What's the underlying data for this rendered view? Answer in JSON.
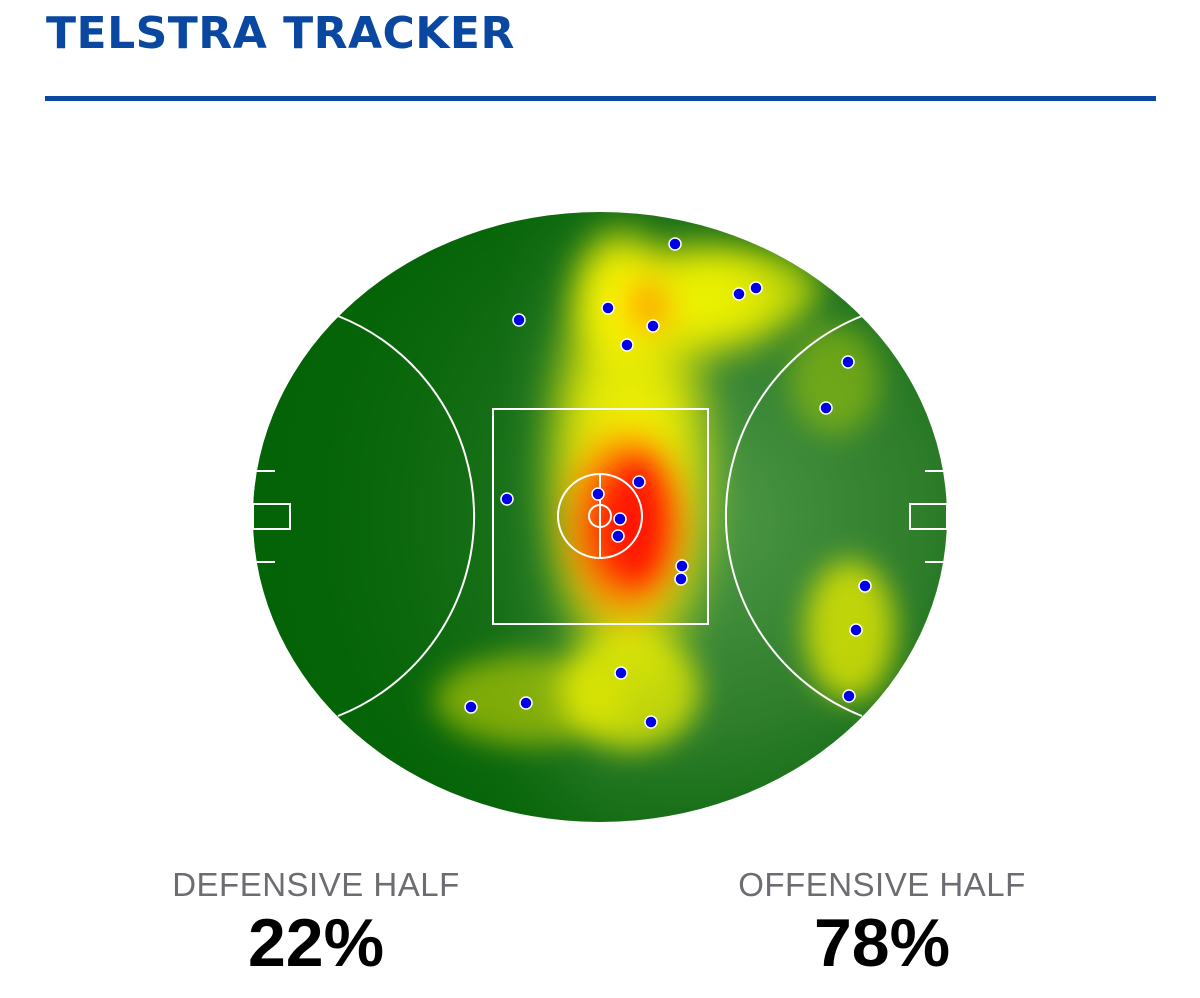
{
  "header": {
    "title": "TELSTRA TRACKER"
  },
  "colors": {
    "brand": "#0a47a0",
    "field_dark": "#046306",
    "field_light": "#4f9a48",
    "marker": "#0000e6",
    "label_gray": "#6c6c72"
  },
  "map": {
    "type": "heatmap",
    "icon": "afl-oval-field",
    "point_count": 27
  },
  "stats": {
    "defensive": {
      "label": "DEFENSIVE HALF",
      "value": "22%"
    },
    "offensive": {
      "label": "OFFENSIVE HALF",
      "value": "78%"
    }
  }
}
